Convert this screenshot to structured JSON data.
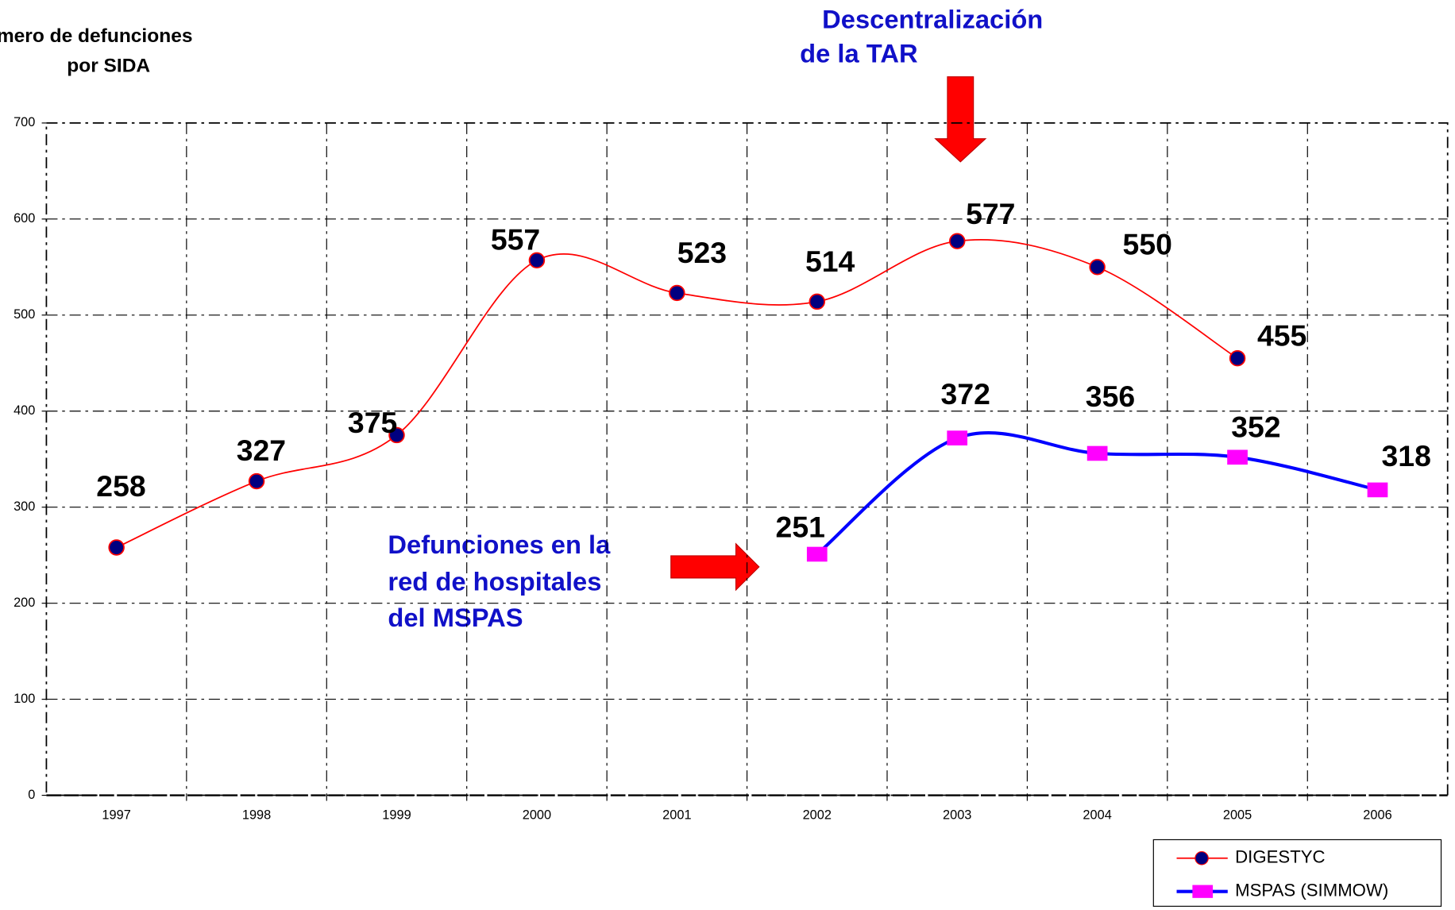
{
  "chart_data": {
    "type": "line",
    "y_label_lines": [
      "Número de defunciones",
      "por SIDA"
    ],
    "annotations": {
      "top": [
        "Descentralización",
        "de la TAR"
      ],
      "middle": [
        "Defunciones en la",
        "red de hospitales",
        "del MSPAS"
      ]
    },
    "categories": [
      "1997",
      "1998",
      "1999",
      "2000",
      "2001",
      "2002",
      "2003",
      "2004",
      "2005",
      "2006"
    ],
    "series": [
      {
        "name": "DIGESTYC",
        "color": "#ff0000",
        "marker": "circle",
        "marker_color": "#000080",
        "values": [
          258,
          327,
          375,
          557,
          523,
          514,
          577,
          550,
          455,
          null
        ]
      },
      {
        "name": "MSPAS (SIMMOW)",
        "color": "#0000ff",
        "marker": "square",
        "marker_color": "#ff00ff",
        "values": [
          null,
          null,
          null,
          null,
          null,
          251,
          372,
          356,
          352,
          318
        ]
      }
    ],
    "ylim": [
      0,
      700
    ],
    "yticks": [
      0,
      100,
      200,
      300,
      400,
      500,
      600,
      700
    ],
    "grid": true,
    "legend": "bottom-right"
  }
}
